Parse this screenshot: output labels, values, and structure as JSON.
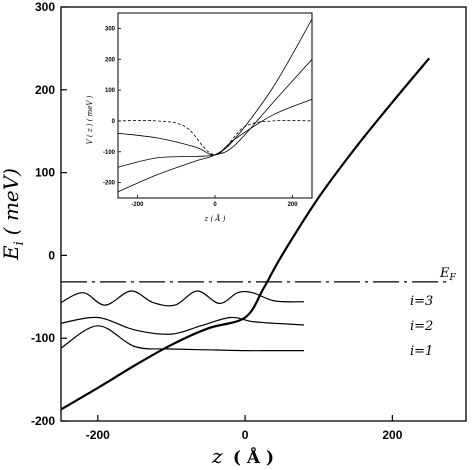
{
  "chart_data": [
    {
      "type": "line",
      "title": "",
      "xlabel": "z ( Å )",
      "ylabel": "E_i ( meV)",
      "xlim": [
        -250,
        300
      ],
      "ylim": [
        -200,
        300
      ],
      "xticks": [
        "-200",
        "0",
        "200"
      ],
      "yticks": [
        "-200",
        "-100",
        "0",
        "100",
        "200",
        "300"
      ],
      "grid": false,
      "series": [
        {
          "name": "",
          "style": "solid-thick",
          "x": [
            -250,
            -200,
            -150,
            -100,
            -50,
            0,
            25,
            50,
            100,
            150,
            200,
            250
          ],
          "y": [
            -186,
            -160,
            -133,
            -108,
            -88,
            -75,
            -40,
            0,
            70,
            130,
            185,
            238
          ]
        },
        {
          "name": "E_F",
          "style": "dash-dot",
          "x": [
            -250,
            280
          ],
          "y": [
            -32,
            -32
          ]
        },
        {
          "name": "i=3",
          "style": "solid-thin",
          "x": [
            -250,
            -220,
            -190,
            -155,
            -125,
            -95,
            -65,
            -35,
            -10,
            10,
            40,
            80
          ],
          "y": [
            -57,
            -45,
            -60,
            -43,
            -57,
            -60,
            -43,
            -58,
            -45,
            -45,
            -55,
            -56
          ]
        },
        {
          "name": "i=2",
          "style": "solid-thin",
          "x": [
            -250,
            -200,
            -150,
            -100,
            -60,
            -20,
            10,
            40,
            80
          ],
          "y": [
            -82,
            -75,
            -90,
            -95,
            -85,
            -75,
            -80,
            -82,
            -84
          ]
        },
        {
          "name": "i=1",
          "style": "solid-thin",
          "x": [
            -250,
            -200,
            -150,
            -100,
            -50,
            0,
            40,
            80
          ],
          "y": [
            -112,
            -85,
            -110,
            -113,
            -114,
            -115,
            -115,
            -115
          ]
        }
      ],
      "annotations": [
        "E_F",
        "i=3",
        "i=2",
        "i=1"
      ]
    },
    {
      "type": "line",
      "title": "",
      "xlabel": "z ( Å )",
      "ylabel": "V ( z ) ( meV )",
      "xlim": [
        -250,
        250
      ],
      "ylim": [
        -250,
        350
      ],
      "xticks": [
        "-200",
        "0",
        "200"
      ],
      "yticks": [
        "-200",
        "-100",
        "0",
        "100",
        "200",
        "300"
      ],
      "grid": false,
      "series": [
        {
          "name": "",
          "style": "solid",
          "x": [
            -250,
            -150,
            -50,
            0,
            50,
            150,
            250
          ],
          "y": [
            -230,
            -175,
            -130,
            -110,
            -60,
            110,
            330
          ]
        },
        {
          "name": "",
          "style": "solid",
          "x": [
            -250,
            -150,
            -50,
            0,
            50,
            150,
            250
          ],
          "y": [
            -150,
            -120,
            -115,
            -110,
            -80,
            60,
            200
          ]
        },
        {
          "name": "",
          "style": "solid",
          "x": [
            -250,
            -150,
            -50,
            0,
            50,
            150,
            250
          ],
          "y": [
            -40,
            -55,
            -85,
            -110,
            -60,
            20,
            70
          ]
        },
        {
          "name": "",
          "style": "dashed",
          "x": [
            -250,
            -150,
            -75,
            0,
            75,
            150,
            250
          ],
          "y": [
            0,
            0,
            -20,
            -110,
            -20,
            0,
            0
          ]
        }
      ]
    }
  ],
  "labels": {
    "main_xlabel_z": "z",
    "main_xlabel_unit": "( Å )",
    "main_ylabel_E": "E",
    "main_ylabel_sub": "i",
    "main_ylabel_unit": "( meV)",
    "ef_E": "E",
    "ef_sub": "F",
    "i3": "i=3",
    "i2": "i=2",
    "i1": "i=1",
    "inset_xlabel": "z ( Å )",
    "inset_ylabel": "V ( z ) ( meV )"
  },
  "colors": {
    "line": "#000000",
    "background": "#ffffff"
  }
}
